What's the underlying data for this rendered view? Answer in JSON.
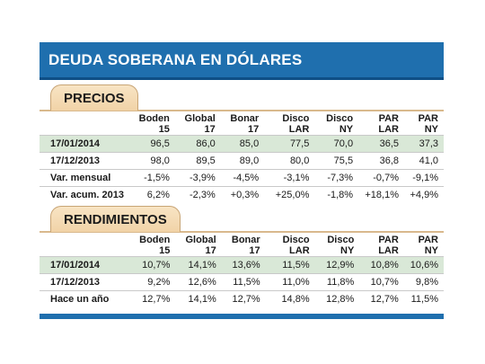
{
  "title": "DEUDA SOBERANA EN DÓLARES",
  "columns": [
    "",
    "Boden 15",
    "Global 17",
    "Bonar 17",
    "Disco LAR",
    "Disco  NY",
    "PAR LAR",
    "PAR NY"
  ],
  "precios": {
    "tab": "PRECIOS",
    "rows": [
      {
        "label": "17/01/2014",
        "values": [
          "96,5",
          "86,0",
          "85,0",
          "77,5",
          "70,0",
          "36,5",
          "37,3"
        ],
        "highlight": true
      },
      {
        "label": "17/12/2013",
        "values": [
          "98,0",
          "89,5",
          "89,0",
          "80,0",
          "75,5",
          "36,8",
          "41,0"
        ],
        "highlight": false
      },
      {
        "label": "Var. mensual",
        "values": [
          "-1,5%",
          "-3,9%",
          "-4,5%",
          "-3,1%",
          "-7,3%",
          "-0,7%",
          "-9,1%"
        ],
        "highlight": false
      },
      {
        "label": "Var. acum. 2013",
        "values": [
          "6,2%",
          "-2,3%",
          "+0,3%",
          "+25,0%",
          "-1,8%",
          "+18,1%",
          "+4,9%"
        ],
        "highlight": false
      }
    ]
  },
  "rendimientos": {
    "tab": "RENDIMIENTOS",
    "rows": [
      {
        "label": "17/01/2014",
        "values": [
          "10,7%",
          "14,1%",
          "13,6%",
          "11,5%",
          "12,9%",
          "10,8%",
          "10,6%"
        ],
        "highlight": true
      },
      {
        "label": "17/12/2013",
        "values": [
          "9,2%",
          "12,6%",
          "11,5%",
          "11,0%",
          "11,8%",
          "10,7%",
          "9,8%"
        ],
        "highlight": false
      },
      {
        "label": "Hace un año",
        "values": [
          "12,7%",
          "14,1%",
          "12,7%",
          "14,8%",
          "12,8%",
          "12,7%",
          "11,5%"
        ],
        "highlight": false
      }
    ]
  },
  "colors": {
    "header": "#1f6fae",
    "highlight": "#d9e8d7",
    "tab": "#f1d3a7"
  }
}
